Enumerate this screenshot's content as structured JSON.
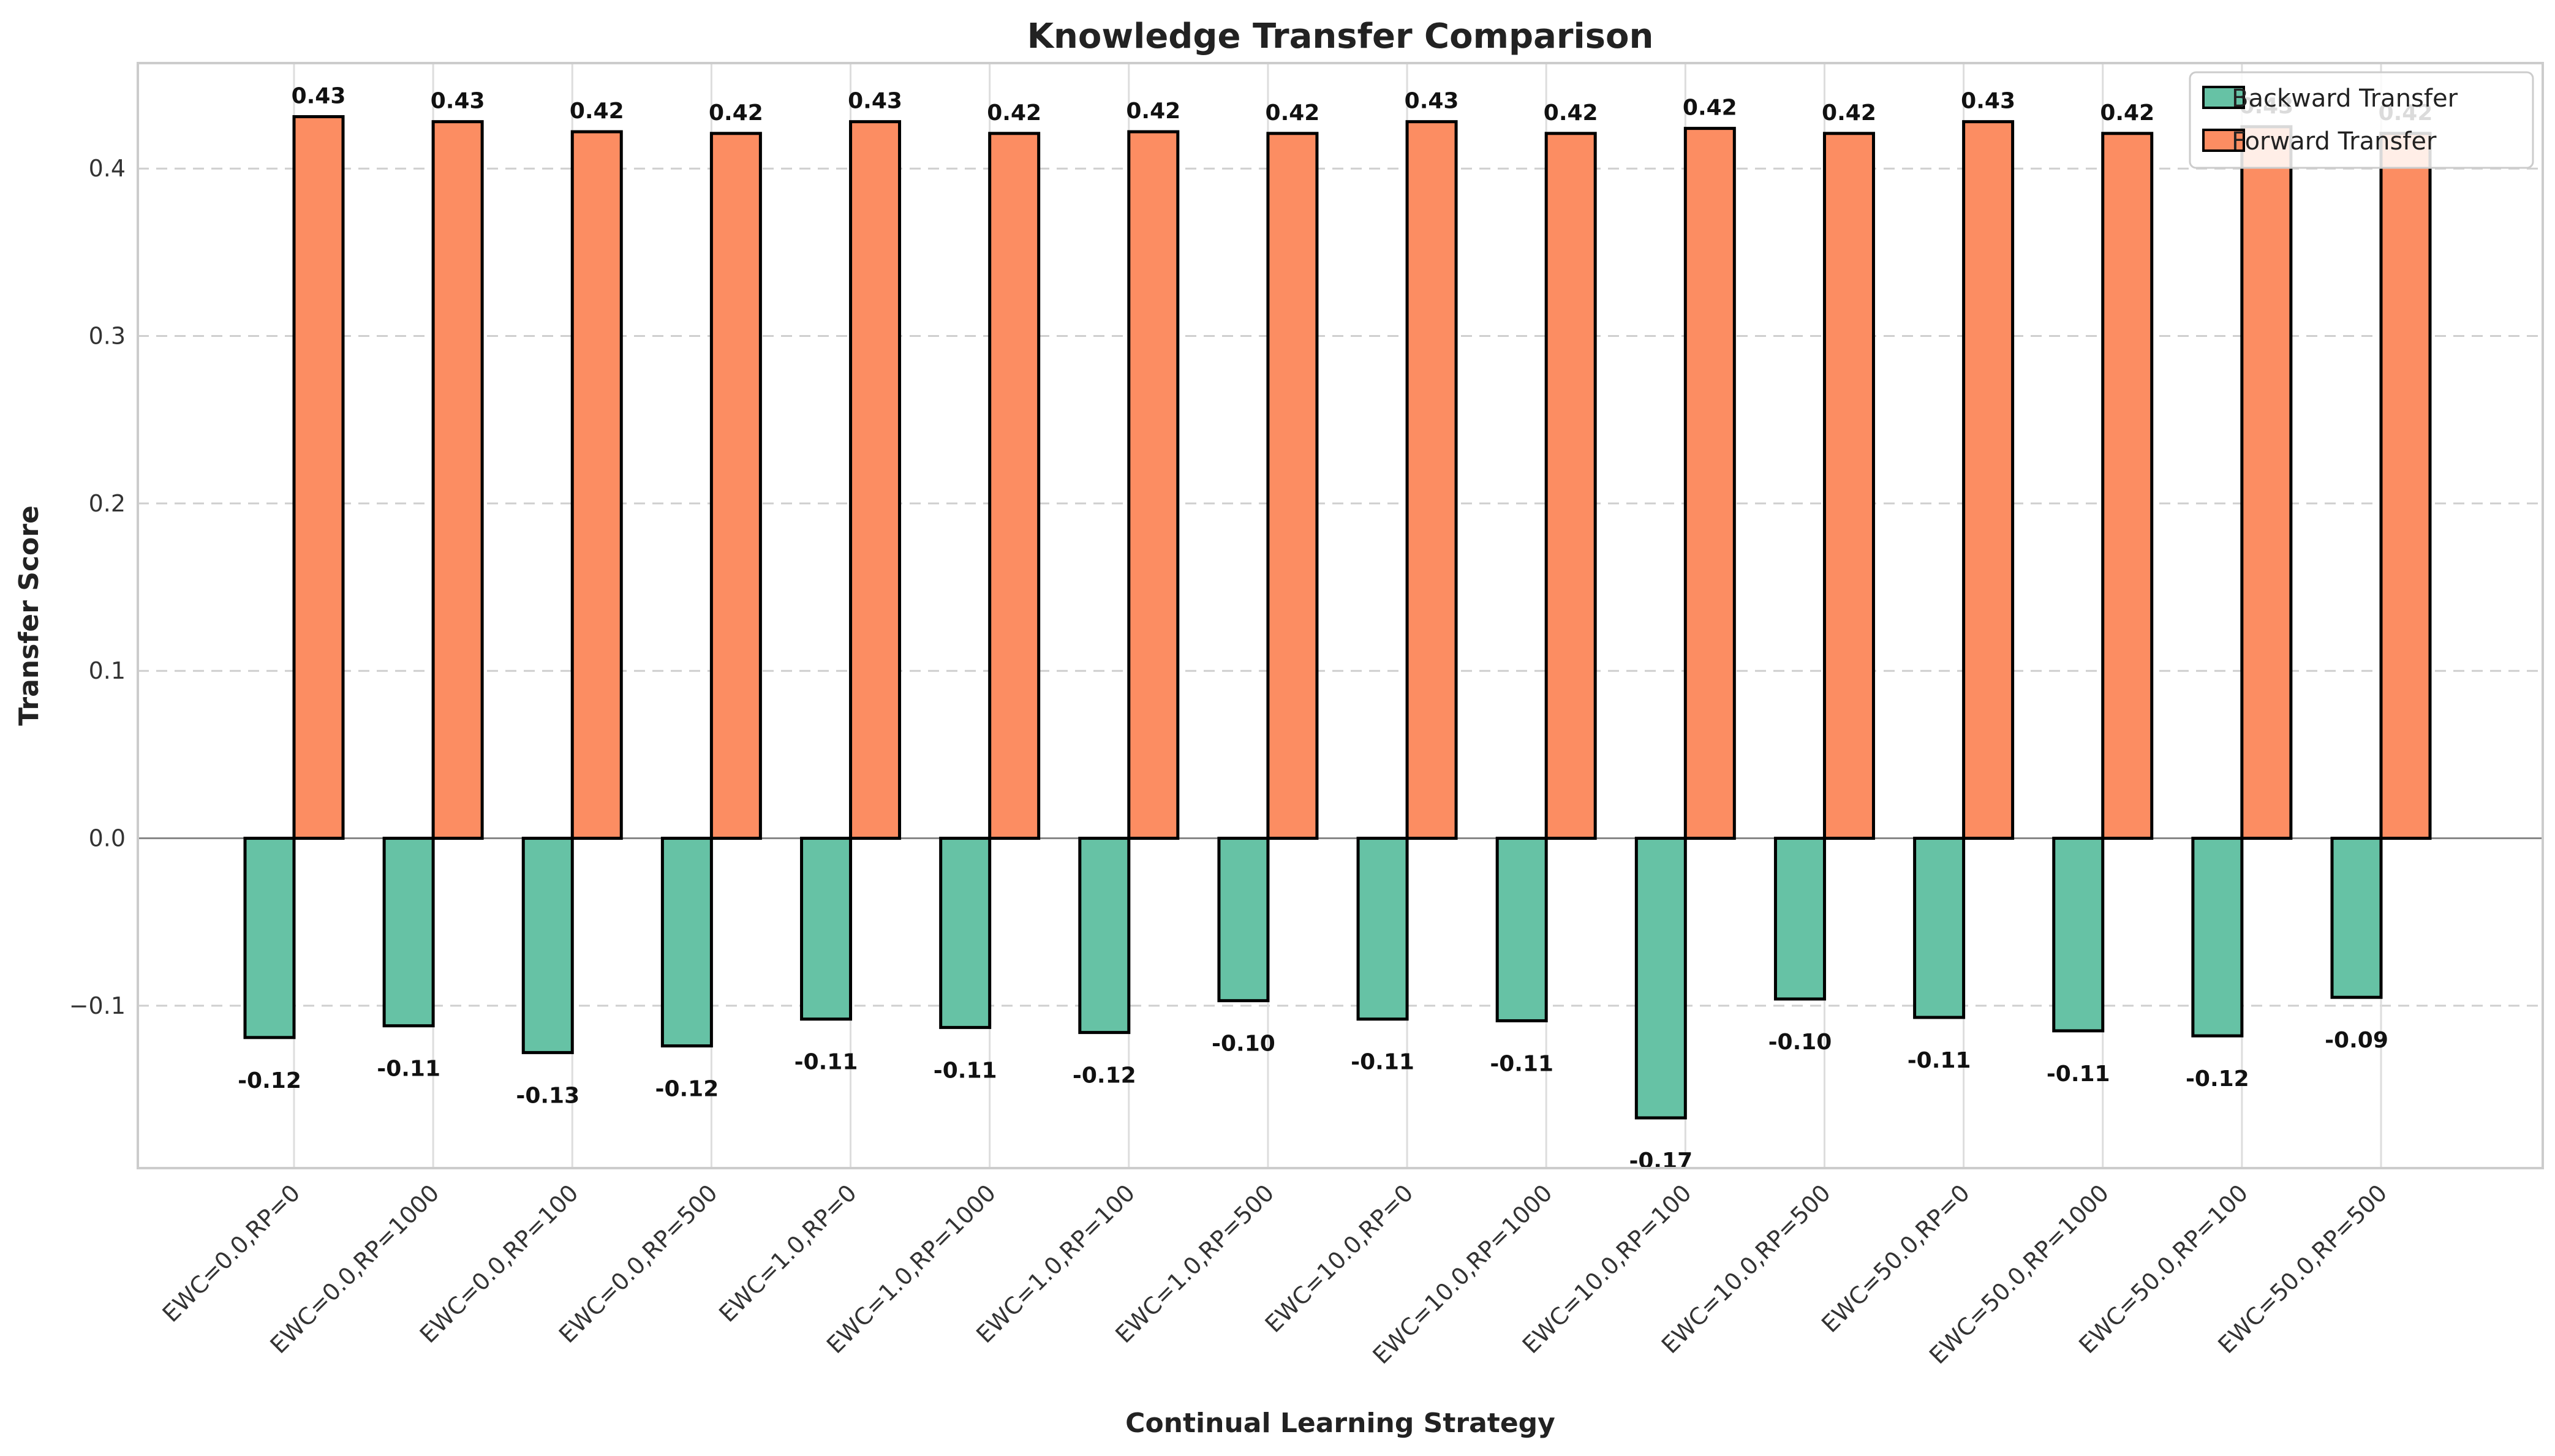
{
  "chart_data": {
    "type": "bar",
    "title": "Knowledge Transfer Comparison",
    "xlabel": "Continual Learning Strategy",
    "ylabel": "Transfer Score",
    "ylim": [
      -0.197,
      0.463
    ],
    "yticks": [
      -0.1,
      0.0,
      0.1,
      0.2,
      0.3,
      0.4
    ],
    "ytick_labels": [
      "−0.1",
      "0.0",
      "0.1",
      "0.2",
      "0.3",
      "0.4"
    ],
    "grid": "horizontal dashed",
    "legend_position": "top-right",
    "categories": [
      "EWC=0.0,RP=0",
      "EWC=0.0,RP=1000",
      "EWC=0.0,RP=100",
      "EWC=0.0,RP=500",
      "EWC=1.0,RP=0",
      "EWC=1.0,RP=1000",
      "EWC=1.0,RP=100",
      "EWC=1.0,RP=500",
      "EWC=10.0,RP=0",
      "EWC=10.0,RP=1000",
      "EWC=10.0,RP=100",
      "EWC=10.0,RP=500",
      "EWC=50.0,RP=0",
      "EWC=50.0,RP=1000",
      "EWC=50.0,RP=100",
      "EWC=50.0,RP=500"
    ],
    "series": [
      {
        "name": "Backward Transfer",
        "color": "#66c2a5",
        "values": [
          -0.119,
          -0.112,
          -0.128,
          -0.124,
          -0.108,
          -0.113,
          -0.116,
          -0.097,
          -0.108,
          -0.109,
          -0.167,
          -0.096,
          -0.107,
          -0.115,
          -0.118,
          -0.095
        ],
        "labels": [
          "-0.12",
          "-0.11",
          "-0.13",
          "-0.12",
          "-0.11",
          "-0.11",
          "-0.12",
          "-0.10",
          "-0.11",
          "-0.11",
          "-0.17",
          "-0.10",
          "-0.11",
          "-0.11",
          "-0.12",
          "-0.09"
        ]
      },
      {
        "name": "Forward Transfer",
        "color": "#fc8d62",
        "values": [
          0.431,
          0.428,
          0.422,
          0.421,
          0.428,
          0.421,
          0.422,
          0.421,
          0.428,
          0.421,
          0.424,
          0.421,
          0.428,
          0.421,
          0.425,
          0.421
        ],
        "labels": [
          "0.43",
          "0.43",
          "0.42",
          "0.42",
          "0.43",
          "0.42",
          "0.42",
          "0.42",
          "0.43",
          "0.42",
          "0.42",
          "0.42",
          "0.43",
          "0.42",
          "0.43",
          "0.42"
        ]
      }
    ]
  }
}
